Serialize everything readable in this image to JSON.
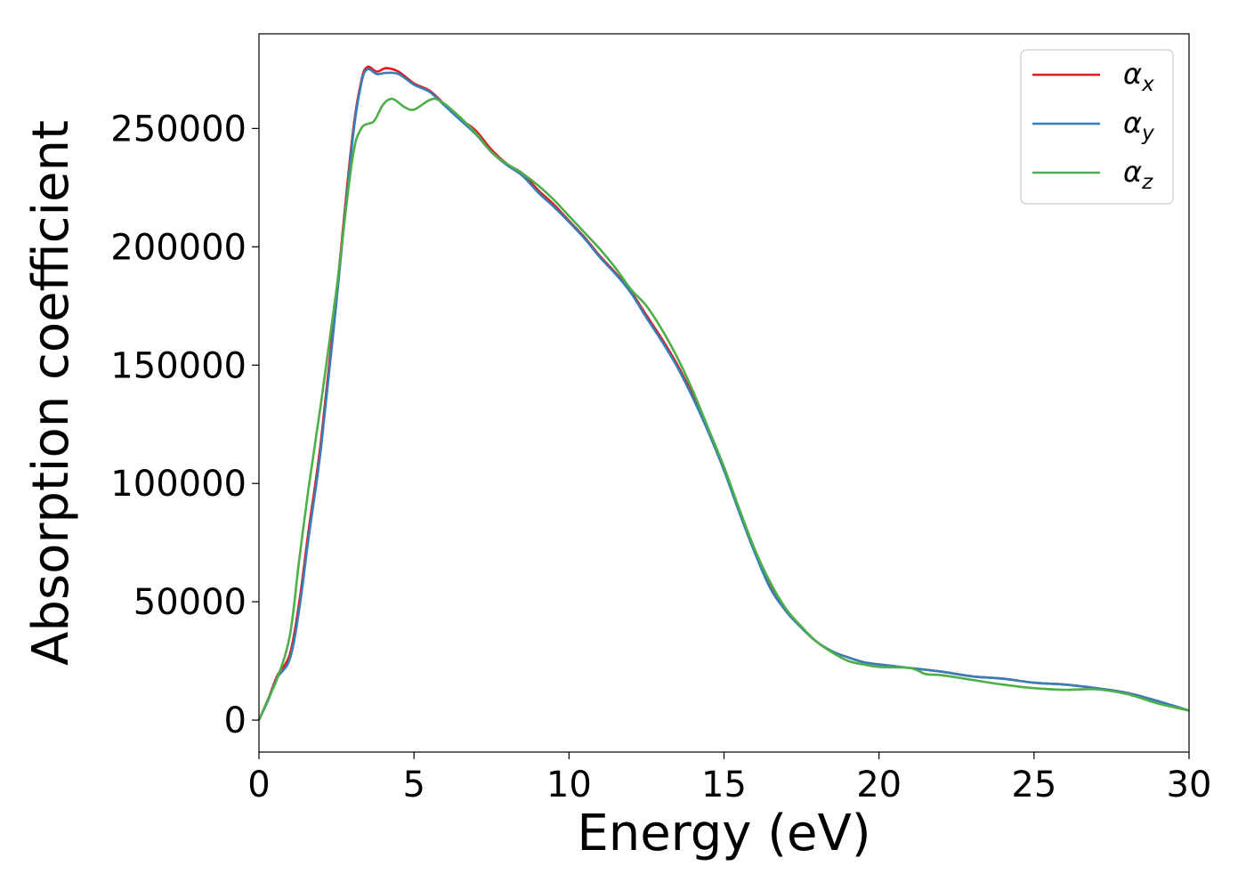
{
  "chart_data": {
    "type": "line",
    "title": "",
    "xlabel": "Energy (eV)",
    "ylabel": "Absorption coefficient",
    "xlim": [
      0,
      30
    ],
    "ylim": [
      -13500,
      290000
    ],
    "grid": false,
    "legend_position": "top-right",
    "x_ticks": [
      0,
      5,
      10,
      15,
      20,
      25,
      30
    ],
    "y_ticks": [
      0,
      50000,
      100000,
      150000,
      200000,
      250000
    ],
    "colors": {
      "alpha_x": "#e41a1c",
      "alpha_y": "#377eb8",
      "alpha_z": "#4daf4a"
    },
    "series": [
      {
        "name": "αx",
        "legend": {
          "symbol": "α",
          "subscript": "x"
        },
        "color": "#e41a1c",
        "points": [
          [
            0,
            0
          ],
          [
            0.3,
            9000
          ],
          [
            0.6,
            19000
          ],
          [
            1.0,
            28000
          ],
          [
            1.3,
            50000
          ],
          [
            1.6,
            80000
          ],
          [
            2.0,
            118000
          ],
          [
            2.5,
            180000
          ],
          [
            3.0,
            245000
          ],
          [
            3.3,
            270000
          ],
          [
            3.5,
            276000
          ],
          [
            3.8,
            274000
          ],
          [
            4.1,
            275500
          ],
          [
            4.5,
            274000
          ],
          [
            5.0,
            269000
          ],
          [
            5.5,
            266000
          ],
          [
            6.0,
            260000
          ],
          [
            6.5,
            254000
          ],
          [
            7.0,
            249000
          ],
          [
            7.5,
            241000
          ],
          [
            8.0,
            235000
          ],
          [
            8.5,
            231000
          ],
          [
            9.0,
            224000
          ],
          [
            9.5,
            218000
          ],
          [
            10.0,
            211000
          ],
          [
            10.5,
            204000
          ],
          [
            11.0,
            196000
          ],
          [
            11.5,
            189000
          ],
          [
            12.0,
            181000
          ],
          [
            12.5,
            171000
          ],
          [
            13.0,
            161000
          ],
          [
            13.5,
            150000
          ],
          [
            14.0,
            137000
          ],
          [
            14.5,
            122000
          ],
          [
            15.0,
            106000
          ],
          [
            15.5,
            88000
          ],
          [
            16.0,
            71000
          ],
          [
            16.5,
            56000
          ],
          [
            17.0,
            46000
          ],
          [
            17.5,
            39000
          ],
          [
            18.0,
            33000
          ],
          [
            18.5,
            29000
          ],
          [
            19.0,
            26500
          ],
          [
            19.5,
            24500
          ],
          [
            20.0,
            23500
          ],
          [
            21.0,
            22000
          ],
          [
            22.0,
            20500
          ],
          [
            23.0,
            18500
          ],
          [
            24.0,
            17500
          ],
          [
            25.0,
            15800
          ],
          [
            26.0,
            15000
          ],
          [
            27.0,
            13500
          ],
          [
            28.0,
            11500
          ],
          [
            29.0,
            8000
          ],
          [
            30.0,
            4000
          ]
        ]
      },
      {
        "name": "αy",
        "legend": {
          "symbol": "α",
          "subscript": "y"
        },
        "color": "#377eb8",
        "points": [
          [
            0,
            0
          ],
          [
            0.3,
            8500
          ],
          [
            0.6,
            18000
          ],
          [
            1.0,
            26000
          ],
          [
            1.3,
            47000
          ],
          [
            1.6,
            77000
          ],
          [
            2.0,
            115000
          ],
          [
            2.5,
            177000
          ],
          [
            3.0,
            243000
          ],
          [
            3.3,
            269000
          ],
          [
            3.5,
            275000
          ],
          [
            3.8,
            273000
          ],
          [
            4.1,
            273500
          ],
          [
            4.5,
            273000
          ],
          [
            5.0,
            268500
          ],
          [
            5.5,
            265500
          ],
          [
            6.0,
            259500
          ],
          [
            6.5,
            253500
          ],
          [
            7.0,
            247500
          ],
          [
            7.5,
            240000
          ],
          [
            8.0,
            234500
          ],
          [
            8.5,
            230000
          ],
          [
            9.0,
            223000
          ],
          [
            9.5,
            217000
          ],
          [
            10.0,
            210500
          ],
          [
            10.5,
            203500
          ],
          [
            11.0,
            195500
          ],
          [
            11.5,
            188500
          ],
          [
            12.0,
            180500
          ],
          [
            12.5,
            170000
          ],
          [
            13.0,
            160000
          ],
          [
            13.5,
            149000
          ],
          [
            14.0,
            136000
          ],
          [
            14.5,
            121500
          ],
          [
            15.0,
            105500
          ],
          [
            15.5,
            87500
          ],
          [
            16.0,
            70500
          ],
          [
            16.5,
            55500
          ],
          [
            17.0,
            46000
          ],
          [
            17.5,
            39000
          ],
          [
            18.0,
            33000
          ],
          [
            18.5,
            29000
          ],
          [
            19.0,
            26500
          ],
          [
            19.5,
            24500
          ],
          [
            20.0,
            23500
          ],
          [
            21.0,
            22000
          ],
          [
            22.0,
            20500
          ],
          [
            23.0,
            18500
          ],
          [
            24.0,
            17500
          ],
          [
            25.0,
            15800
          ],
          [
            26.0,
            15000
          ],
          [
            27.0,
            13500
          ],
          [
            28.0,
            11500
          ],
          [
            29.0,
            8000
          ],
          [
            30.0,
            4000
          ]
        ]
      },
      {
        "name": "αz",
        "legend": {
          "symbol": "α",
          "subscript": "z"
        },
        "color": "#4daf4a",
        "points": [
          [
            0,
            0
          ],
          [
            0.3,
            9000
          ],
          [
            0.6,
            18000
          ],
          [
            1.0,
            36000
          ],
          [
            1.3,
            68000
          ],
          [
            1.6,
            98000
          ],
          [
            2.0,
            134000
          ],
          [
            2.5,
            182000
          ],
          [
            3.0,
            236000
          ],
          [
            3.3,
            250000
          ],
          [
            3.7,
            253000
          ],
          [
            4.0,
            260000
          ],
          [
            4.3,
            262500
          ],
          [
            4.7,
            259000
          ],
          [
            5.0,
            258000
          ],
          [
            5.5,
            262000
          ],
          [
            5.8,
            262000
          ],
          [
            6.3,
            257000
          ],
          [
            7.0,
            248000
          ],
          [
            7.5,
            240000
          ],
          [
            8.0,
            235000
          ],
          [
            8.5,
            231000
          ],
          [
            9.0,
            226000
          ],
          [
            9.5,
            220000
          ],
          [
            10.0,
            213000
          ],
          [
            10.5,
            206000
          ],
          [
            11.0,
            199000
          ],
          [
            11.5,
            191000
          ],
          [
            12.0,
            182000
          ],
          [
            12.5,
            175000
          ],
          [
            13.0,
            165000
          ],
          [
            13.5,
            153000
          ],
          [
            14.0,
            139000
          ],
          [
            14.5,
            123000
          ],
          [
            15.0,
            107000
          ],
          [
            15.5,
            89000
          ],
          [
            16.0,
            72000
          ],
          [
            16.5,
            58000
          ],
          [
            17.0,
            47000
          ],
          [
            17.5,
            39500
          ],
          [
            18.0,
            33000
          ],
          [
            18.5,
            28500
          ],
          [
            19.0,
            25000
          ],
          [
            19.5,
            23500
          ],
          [
            20.0,
            22500
          ],
          [
            21.0,
            22000
          ],
          [
            21.5,
            19500
          ],
          [
            22.0,
            19000
          ],
          [
            23.0,
            17000
          ],
          [
            24.0,
            15000
          ],
          [
            25.0,
            13500
          ],
          [
            26.0,
            12800
          ],
          [
            27.0,
            13000
          ],
          [
            28.0,
            11000
          ],
          [
            29.0,
            7000
          ],
          [
            30.0,
            4000
          ]
        ]
      }
    ]
  }
}
